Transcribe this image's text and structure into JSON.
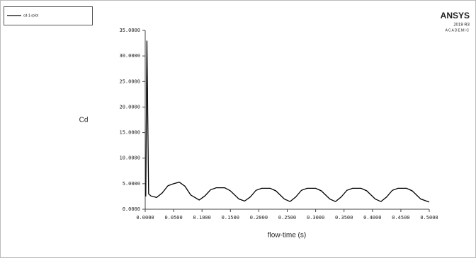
{
  "chart_data": {
    "type": "line",
    "x_label": "flow-time (s)",
    "y_label": "Cd",
    "logo": {
      "brand": "ANSYS",
      "version": "2019 R3",
      "edition": "ACADEMIC"
    },
    "xlim": [
      0,
      0.5
    ],
    "ylim": [
      0,
      35
    ],
    "xticks": [
      {
        "value": 0,
        "label": "0.0000"
      },
      {
        "value": 0.05,
        "label": "0.0500"
      },
      {
        "value": 0.1,
        "label": "0.1000"
      },
      {
        "value": 0.15,
        "label": "0.1500"
      },
      {
        "value": 0.2,
        "label": "0.2000"
      },
      {
        "value": 0.25,
        "label": "0.2500"
      },
      {
        "value": 0.3,
        "label": "0.3000"
      },
      {
        "value": 0.35,
        "label": "0.3500"
      },
      {
        "value": 0.4,
        "label": "0.4000"
      },
      {
        "value": 0.45,
        "label": "0.4500"
      },
      {
        "value": 0.5,
        "label": "0.5000"
      }
    ],
    "yticks": [
      {
        "value": 0,
        "label": "0.0000"
      },
      {
        "value": 5,
        "label": "5.0000"
      },
      {
        "value": 10,
        "label": "10.0000"
      },
      {
        "value": 15,
        "label": "15.0000"
      },
      {
        "value": 20,
        "label": "20.0000"
      },
      {
        "value": 25,
        "label": "25.0000"
      },
      {
        "value": 30,
        "label": "30.0000"
      },
      {
        "value": 35,
        "label": "35.0000"
      }
    ],
    "x": [
      0.001,
      0.003,
      0.006,
      0.01,
      0.02,
      0.03,
      0.04,
      0.05,
      0.06,
      0.07,
      0.08,
      0.095,
      0.105,
      0.115,
      0.125,
      0.14,
      0.15,
      0.165,
      0.175,
      0.185,
      0.195,
      0.205,
      0.22,
      0.23,
      0.245,
      0.255,
      0.265,
      0.275,
      0.285,
      0.3,
      0.31,
      0.325,
      0.335,
      0.345,
      0.355,
      0.365,
      0.38,
      0.39,
      0.405,
      0.415,
      0.425,
      0.435,
      0.445,
      0.46,
      0.47,
      0.485,
      0.5
    ],
    "series": [
      {
        "name": "cd-1-rplot",
        "color": "#000000",
        "values": [
          2.5,
          33.0,
          3.0,
          2.6,
          2.3,
          3.2,
          4.6,
          5.0,
          5.3,
          4.5,
          2.8,
          1.8,
          2.6,
          3.8,
          4.2,
          4.2,
          3.6,
          2.0,
          1.6,
          2.4,
          3.7,
          4.1,
          4.1,
          3.6,
          2.0,
          1.5,
          2.4,
          3.7,
          4.1,
          4.1,
          3.6,
          2.0,
          1.5,
          2.4,
          3.7,
          4.1,
          4.1,
          3.6,
          2.0,
          1.5,
          2.4,
          3.7,
          4.1,
          4.1,
          3.6,
          2.0,
          1.4
        ]
      }
    ]
  }
}
